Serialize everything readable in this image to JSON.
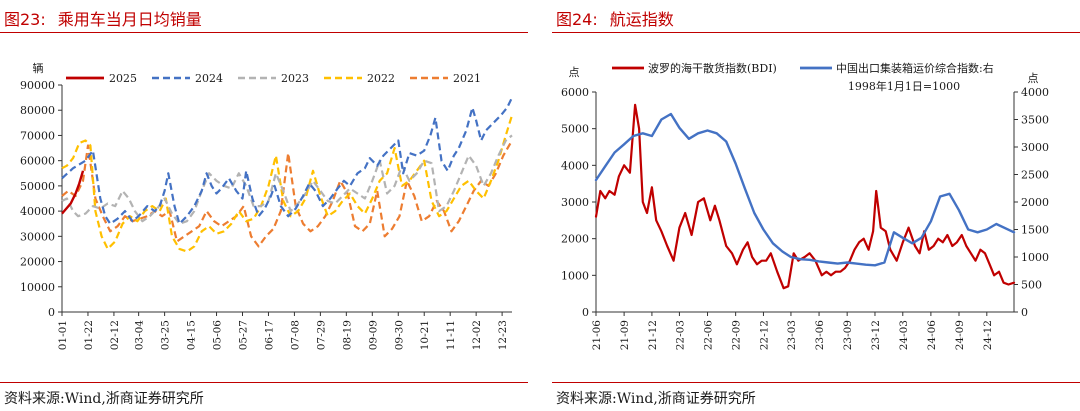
{
  "left": {
    "figure_label": "图23:",
    "title": "乘用车当月日均销量",
    "source": "资料来源:Wind,浙商证券研究所"
  },
  "right": {
    "figure_label": "图24:",
    "title": "航运指数",
    "source": "资料来源:Wind,浙商证券研究所"
  },
  "chart_data": [
    {
      "type": "line",
      "unit_label": "辆",
      "ylim": [
        0,
        90000
      ],
      "yticks": [
        0,
        10000,
        20000,
        30000,
        40000,
        50000,
        60000,
        70000,
        80000,
        90000
      ],
      "xlim": [
        1,
        365
      ],
      "xticks": [
        {
          "label": "01-01",
          "day": 1
        },
        {
          "label": "01-22",
          "day": 22
        },
        {
          "label": "02-12",
          "day": 43
        },
        {
          "label": "03-04",
          "day": 63
        },
        {
          "label": "03-25",
          "day": 84
        },
        {
          "label": "04-15",
          "day": 105
        },
        {
          "label": "05-06",
          "day": 126
        },
        {
          "label": "05-27",
          "day": 147
        },
        {
          "label": "06-17",
          "day": 168
        },
        {
          "label": "07-08",
          "day": 189
        },
        {
          "label": "07-29",
          "day": 210
        },
        {
          "label": "08-19",
          "day": 231
        },
        {
          "label": "09-09",
          "day": 252
        },
        {
          "label": "09-30",
          "day": 273
        },
        {
          "label": "10-21",
          "day": 294
        },
        {
          "label": "11-11",
          "day": 315
        },
        {
          "label": "12-02",
          "day": 336
        },
        {
          "label": "12-23",
          "day": 357
        }
      ],
      "legend_position": "top",
      "series": [
        {
          "name": "2025",
          "color": "#c00000",
          "dash": "solid",
          "width": 2.4,
          "x": [
            1,
            8,
            12,
            15,
            18
          ],
          "y": [
            39000,
            43000,
            47000,
            51000,
            56000
          ]
        },
        {
          "name": "2024",
          "color": "#4472c4",
          "dash": "dash",
          "width": 2.2,
          "x": [
            1,
            10,
            20,
            26,
            32,
            36,
            40,
            46,
            52,
            58,
            63,
            70,
            76,
            80,
            84,
            87,
            92,
            96,
            102,
            108,
            114,
            118,
            122,
            126,
            130,
            136,
            142,
            147,
            150,
            155,
            160,
            165,
            170,
            173,
            178,
            184,
            190,
            196,
            201,
            206,
            212,
            218,
            224,
            229,
            234,
            240,
            246,
            250,
            256,
            261,
            267,
            273,
            277,
            282,
            288,
            294,
            299,
            303,
            308,
            313,
            318,
            322,
            328,
            333,
            336,
            340,
            344,
            350,
            356,
            361,
            365
          ],
          "y": [
            53000,
            57000,
            60000,
            64000,
            45000,
            38000,
            35000,
            37000,
            40000,
            36000,
            38000,
            42000,
            40000,
            42000,
            48000,
            55000,
            42000,
            35000,
            38000,
            42000,
            48000,
            55000,
            50000,
            47000,
            49000,
            53000,
            48000,
            45000,
            56000,
            45000,
            38000,
            41000,
            46000,
            50000,
            42000,
            38000,
            41000,
            46000,
            51000,
            48000,
            42000,
            45000,
            49000,
            52000,
            50000,
            55000,
            57000,
            61000,
            58000,
            62000,
            65000,
            68000,
            55000,
            63000,
            62000,
            64000,
            70000,
            77000,
            60000,
            56000,
            62000,
            65000,
            72000,
            81000,
            76000,
            68000,
            72000,
            75000,
            78000,
            81000,
            85000
          ]
        },
        {
          "name": "2023",
          "color": "#b3b3b3",
          "dash": "dash",
          "width": 2.2,
          "x": [
            1,
            5,
            10,
            14,
            20,
            26,
            32,
            38,
            44,
            50,
            55,
            60,
            66,
            72,
            78,
            84,
            90,
            96,
            102,
            108,
            114,
            120,
            126,
            132,
            138,
            144,
            150,
            156,
            162,
            168,
            174,
            180,
            186,
            192,
            198,
            204,
            210,
            216,
            222,
            228,
            234,
            240,
            246,
            252,
            258,
            264,
            270,
            276,
            282,
            288,
            294,
            300,
            306,
            312,
            318,
            324,
            330,
            336,
            342,
            348,
            354,
            360,
            365
          ],
          "y": [
            44000,
            45000,
            40000,
            38000,
            39000,
            42000,
            41000,
            43000,
            42000,
            48000,
            45000,
            40000,
            36000,
            38000,
            41000,
            45000,
            39000,
            35000,
            36000,
            40000,
            48000,
            55000,
            52000,
            50000,
            49000,
            55000,
            50000,
            42000,
            42000,
            44000,
            55000,
            48000,
            40000,
            43000,
            47000,
            52000,
            48000,
            44000,
            43000,
            46000,
            49000,
            47000,
            45000,
            52000,
            60000,
            47000,
            50000,
            58000,
            52000,
            55000,
            60000,
            59000,
            40000,
            42000,
            48000,
            55000,
            62000,
            58000,
            50000,
            55000,
            62000,
            68000,
            70000
          ]
        },
        {
          "name": "2022",
          "color": "#ffc000",
          "dash": "dash",
          "width": 2.2,
          "x": [
            1,
            5,
            10,
            15,
            20,
            24,
            28,
            33,
            38,
            44,
            50,
            56,
            62,
            68,
            74,
            80,
            85,
            90,
            96,
            102,
            108,
            114,
            120,
            126,
            132,
            138,
            144,
            150,
            156,
            162,
            168,
            174,
            180,
            186,
            192,
            198,
            204,
            210,
            216,
            222,
            228,
            234,
            240,
            246,
            252,
            258,
            264,
            270,
            276,
            282,
            288,
            294,
            300,
            306,
            312,
            318,
            324,
            330,
            336,
            342,
            348,
            354,
            360,
            365
          ],
          "y": [
            57000,
            58000,
            61000,
            67000,
            68000,
            66000,
            40000,
            30000,
            25000,
            28000,
            35000,
            38000,
            36000,
            40000,
            42000,
            40000,
            45000,
            30000,
            25000,
            24000,
            26000,
            32000,
            34000,
            31000,
            32000,
            35000,
            40000,
            36000,
            37000,
            42000,
            50000,
            62000,
            44000,
            38000,
            40000,
            45000,
            56000,
            46000,
            38000,
            40000,
            44000,
            47000,
            42000,
            39000,
            45000,
            52000,
            55000,
            65000,
            50000,
            52000,
            56000,
            60000,
            44000,
            38000,
            40000,
            45000,
            50000,
            52000,
            48000,
            45000,
            52000,
            60000,
            70000,
            78000
          ]
        },
        {
          "name": "2021",
          "color": "#ed7d31",
          "dash": "dash",
          "width": 2.2,
          "x": [
            1,
            6,
            12,
            18,
            22,
            28,
            34,
            40,
            46,
            52,
            58,
            64,
            70,
            76,
            82,
            88,
            94,
            100,
            106,
            112,
            118,
            124,
            130,
            136,
            142,
            148,
            154,
            160,
            166,
            172,
            178,
            184,
            190,
            196,
            202,
            208,
            214,
            220,
            226,
            232,
            238,
            244,
            250,
            256,
            262,
            268,
            274,
            280,
            286,
            292,
            298,
            304,
            310,
            316,
            322,
            328,
            334,
            340,
            346,
            352,
            358,
            365
          ],
          "y": [
            46000,
            48000,
            46000,
            52000,
            66000,
            45000,
            38000,
            32000,
            34000,
            38000,
            36000,
            37000,
            38000,
            40000,
            38000,
            40000,
            28000,
            30000,
            32000,
            34000,
            40000,
            36000,
            34000,
            36000,
            38000,
            42000,
            30000,
            26000,
            30000,
            33000,
            40000,
            63000,
            42000,
            35000,
            32000,
            34000,
            38000,
            44000,
            52000,
            47000,
            34000,
            32000,
            35000,
            48000,
            30000,
            33000,
            38000,
            52000,
            46000,
            36000,
            38000,
            44000,
            40000,
            32000,
            36000,
            42000,
            48000,
            52000,
            50000,
            55000,
            62000,
            68000
          ]
        }
      ]
    },
    {
      "type": "line",
      "unit_label_left": "点",
      "unit_label_right": "点",
      "ylim_left": [
        0,
        6000
      ],
      "yticks_left": [
        0,
        1000,
        2000,
        3000,
        4000,
        5000,
        6000
      ],
      "ylim_right": [
        0,
        4000
      ],
      "yticks_right": [
        0,
        500,
        1000,
        1500,
        2000,
        2500,
        3000,
        3500,
        4000
      ],
      "xlim": [
        "2021-06-01",
        "2025-02-28"
      ],
      "xticks": [
        "21-06",
        "21-09",
        "21-12",
        "22-03",
        "22-06",
        "22-09",
        "22-12",
        "23-03",
        "23-06",
        "23-09",
        "23-12",
        "24-03",
        "24-06",
        "24-09",
        "24-12"
      ],
      "legend_position": "top",
      "series": [
        {
          "name": "波罗的海干散货指数(BDI)",
          "color": "#c00000",
          "axis": "left",
          "width": 2.2,
          "x": [
            "2021-06-01",
            "2021-06-15",
            "2021-07-01",
            "2021-07-15",
            "2021-08-01",
            "2021-08-15",
            "2021-09-01",
            "2021-09-20",
            "2021-10-07",
            "2021-10-20",
            "2021-11-01",
            "2021-11-15",
            "2021-12-01",
            "2021-12-15",
            "2022-01-01",
            "2022-01-20",
            "2022-02-10",
            "2022-03-01",
            "2022-03-20",
            "2022-04-10",
            "2022-05-01",
            "2022-05-20",
            "2022-06-10",
            "2022-06-25",
            "2022-07-10",
            "2022-08-01",
            "2022-08-20",
            "2022-09-05",
            "2022-09-25",
            "2022-10-10",
            "2022-10-25",
            "2022-11-10",
            "2022-11-25",
            "2022-12-10",
            "2022-12-25",
            "2023-01-15",
            "2023-02-05",
            "2023-02-20",
            "2023-03-10",
            "2023-03-25",
            "2023-04-15",
            "2023-05-01",
            "2023-05-20",
            "2023-06-10",
            "2023-06-25",
            "2023-07-10",
            "2023-07-25",
            "2023-08-10",
            "2023-08-25",
            "2023-09-10",
            "2023-09-25",
            "2023-10-10",
            "2023-10-25",
            "2023-11-10",
            "2023-11-25",
            "2023-12-05",
            "2023-12-20",
            "2024-01-05",
            "2024-01-20",
            "2024-02-10",
            "2024-03-01",
            "2024-03-20",
            "2024-04-10",
            "2024-04-25",
            "2024-05-10",
            "2024-05-25",
            "2024-06-10",
            "2024-06-25",
            "2024-07-10",
            "2024-07-25",
            "2024-08-10",
            "2024-08-25",
            "2024-09-10",
            "2024-09-25",
            "2024-10-10",
            "2024-10-25",
            "2024-11-10",
            "2024-11-25",
            "2024-12-10",
            "2024-12-25",
            "2025-01-10",
            "2025-01-25",
            "2025-02-10",
            "2025-02-28"
          ],
          "y": [
            2600,
            3300,
            3100,
            3300,
            3200,
            3700,
            4000,
            3800,
            5650,
            5000,
            3000,
            2700,
            3400,
            2500,
            2200,
            1800,
            1400,
            2300,
            2700,
            2100,
            3000,
            3100,
            2500,
            2900,
            2500,
            1800,
            1600,
            1300,
            1700,
            1900,
            1500,
            1300,
            1400,
            1400,
            1600,
            1100,
            650,
            700,
            1600,
            1400,
            1500,
            1600,
            1400,
            1000,
            1100,
            1000,
            1100,
            1100,
            1200,
            1400,
            1700,
            1900,
            2000,
            1700,
            2200,
            3300,
            2300,
            2200,
            1700,
            1400,
            1900,
            2300,
            1800,
            1600,
            2200,
            1700,
            1800,
            2000,
            1900,
            2100,
            1800,
            1900,
            2100,
            1800,
            1600,
            1400,
            1700,
            1600,
            1300,
            1000,
            1100,
            800,
            750,
            800
          ]
        },
        {
          "name": "中国出口集装箱运价综合指数:右",
          "subtitle": "1998年1月1日=1000",
          "color": "#4472c4",
          "axis": "right",
          "width": 2.4,
          "x": [
            "2021-06-01",
            "2021-07-01",
            "2021-08-01",
            "2021-09-01",
            "2021-10-01",
            "2021-11-01",
            "2021-12-01",
            "2022-01-01",
            "2022-02-01",
            "2022-03-01",
            "2022-04-01",
            "2022-05-01",
            "2022-06-01",
            "2022-07-01",
            "2022-08-01",
            "2022-09-01",
            "2022-10-01",
            "2022-11-01",
            "2022-12-01",
            "2023-01-01",
            "2023-02-01",
            "2023-03-01",
            "2023-04-01",
            "2023-05-01",
            "2023-06-01",
            "2023-07-01",
            "2023-08-01",
            "2023-09-01",
            "2023-10-01",
            "2023-11-01",
            "2023-12-01",
            "2024-01-01",
            "2024-02-01",
            "2024-03-01",
            "2024-04-01",
            "2024-05-01",
            "2024-06-01",
            "2024-07-01",
            "2024-08-01",
            "2024-09-01",
            "2024-10-01",
            "2024-11-01",
            "2024-12-01",
            "2025-01-01",
            "2025-02-28"
          ],
          "y": [
            2400,
            2650,
            2900,
            3050,
            3200,
            3250,
            3200,
            3500,
            3600,
            3350,
            3150,
            3250,
            3300,
            3250,
            3100,
            2700,
            2250,
            1800,
            1500,
            1250,
            1100,
            1000,
            960,
            950,
            920,
            900,
            880,
            900,
            880,
            860,
            850,
            900,
            1450,
            1350,
            1250,
            1350,
            1650,
            2100,
            2150,
            1850,
            1500,
            1450,
            1500,
            1600,
            1450
          ]
        }
      ]
    }
  ]
}
